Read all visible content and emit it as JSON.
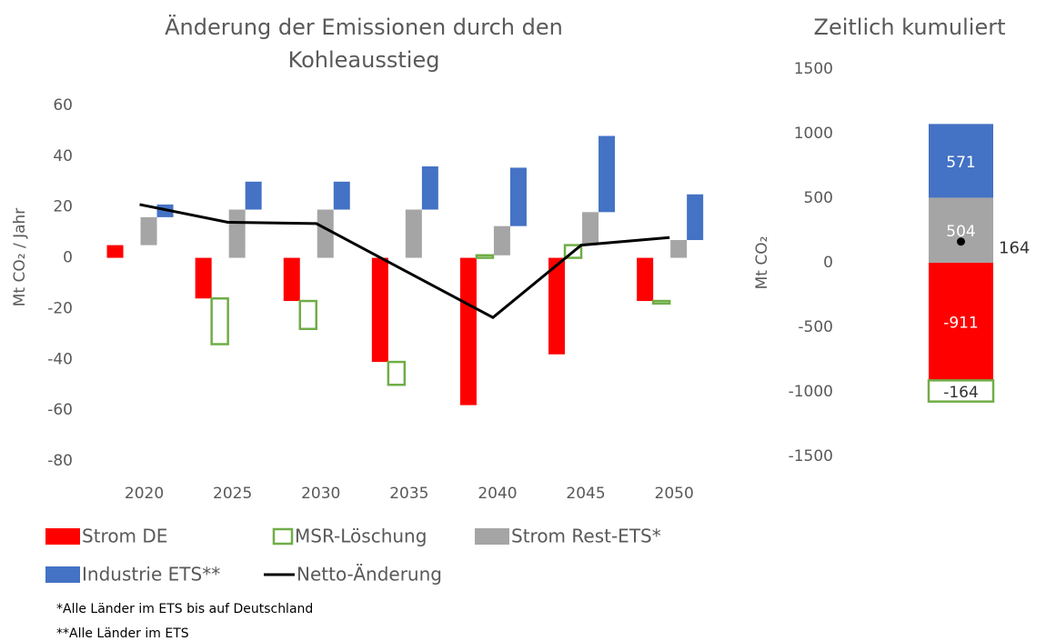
{
  "chart_data": [
    {
      "type": "bar",
      "stacked": true,
      "title": "Änderung der Emissionen durch den Kohleausstieg",
      "y_label": "Mt CO₂ / Jahr",
      "categories": [
        "2020",
        "2025",
        "2030",
        "2035",
        "2040",
        "2045",
        "2050"
      ],
      "ylim": [
        -80,
        60
      ],
      "yticks": [
        -80,
        -60,
        -40,
        -20,
        0,
        20,
        40,
        60
      ],
      "grid": false,
      "series": [
        {
          "name": "Strom DE",
          "color": "#ff0000",
          "values": [
            5,
            -16,
            -17,
            -41,
            -58,
            -38,
            -17
          ]
        },
        {
          "name": "MSR-Löschung",
          "color": "#70ad47",
          "style": "outline",
          "values": [
            0,
            -18,
            -11,
            -9,
            1,
            5,
            -1
          ]
        },
        {
          "name": "Strom Rest-ETS*",
          "color": "#a5a5a5",
          "values": [
            11,
            19,
            19,
            19,
            11.5,
            13,
            7
          ]
        },
        {
          "name": "Industrie ETS**",
          "color": "#4472c4",
          "values": [
            5,
            11,
            11,
            17,
            23,
            30,
            18
          ]
        },
        {
          "name": "Netto-Änderung",
          "color": "#000000",
          "type": "line",
          "values": [
            21,
            14,
            13.5,
            -5,
            -23.5,
            5,
            8
          ]
        }
      ],
      "notes": [
        "*Alle Länder im ETS bis auf Deutschland",
        "**Alle Länder im ETS"
      ]
    },
    {
      "type": "bar",
      "stacked": true,
      "title": "Zeitlich kumuliert",
      "y_label": "Mt CO₂",
      "ylim": [
        -1500,
        1500
      ],
      "yticks": [
        -1500,
        -1000,
        -500,
        0,
        500,
        1000,
        1500
      ],
      "grid": false,
      "series": [
        {
          "name": "Strom DE",
          "color": "#ff0000",
          "values": [
            -911
          ]
        },
        {
          "name": "MSR-Löschung",
          "color": "#70ad47",
          "style": "outline",
          "values": [
            -164
          ]
        },
        {
          "name": "Strom Rest-ETS*",
          "color": "#a5a5a5",
          "values": [
            504
          ]
        },
        {
          "name": "Industrie ETS**",
          "color": "#4472c4",
          "values": [
            571
          ]
        },
        {
          "name": "Netto-Änderung",
          "color": "#000000",
          "type": "point",
          "values": [
            164
          ]
        }
      ]
    }
  ]
}
